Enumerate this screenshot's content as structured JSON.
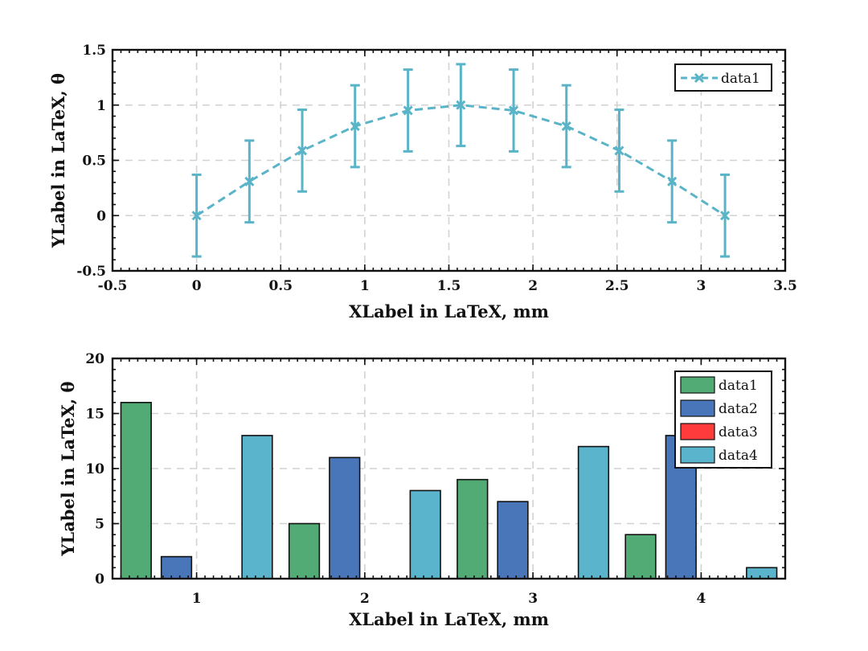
{
  "colors": {
    "line_series": "#5ab4c8",
    "data1": "#52aa74",
    "data2": "#4876b8",
    "data3": "#ff3b3b",
    "data4": "#5ab4cc",
    "axis": "#111111",
    "grid": "#d2d2d2"
  },
  "chart_data": [
    {
      "type": "line",
      "title": "",
      "xlabel": "XLabel in LaTeX, mm",
      "ylabel": "YLabel in LaTeX, θ",
      "xlim": [
        -0.5,
        3.5
      ],
      "ylim": [
        -0.5,
        1.5
      ],
      "xticks": [
        -0.5,
        0,
        0.5,
        1,
        1.5,
        2,
        2.5,
        3,
        3.5
      ],
      "xtick_labels": [
        "-0.5",
        "0",
        "0.5",
        "1",
        "1.5",
        "2",
        "2.5",
        "3",
        "3.5"
      ],
      "yticks": [
        -0.5,
        0,
        0.5,
        1,
        1.5
      ],
      "ytick_labels": [
        "-0.5",
        "0",
        "0.5",
        "1",
        "1.5"
      ],
      "grid": true,
      "legend_position": "top-right",
      "series": [
        {
          "name": "data1",
          "marker": "x",
          "line_style": "dashed",
          "x": [
            0,
            0.314,
            0.628,
            0.942,
            1.257,
            1.571,
            1.885,
            2.199,
            2.513,
            2.827,
            3.142
          ],
          "y": [
            0,
            0.309,
            0.588,
            0.809,
            0.951,
            1.0,
            0.951,
            0.809,
            0.588,
            0.309,
            0
          ],
          "error": [
            0.37,
            0.37,
            0.37,
            0.37,
            0.37,
            0.37,
            0.37,
            0.37,
            0.37,
            0.37,
            0.37
          ]
        }
      ]
    },
    {
      "type": "bar",
      "title": "",
      "xlabel": "XLabel in LaTeX, mm",
      "ylabel": "YLabel in LaTeX, θ",
      "categories": [
        "1",
        "2",
        "3",
        "4"
      ],
      "ylim": [
        0,
        20
      ],
      "yticks": [
        0,
        5,
        10,
        15,
        20
      ],
      "ytick_labels": [
        "0",
        "5",
        "10",
        "15",
        "20"
      ],
      "grid": true,
      "legend_position": "top-right",
      "series": [
        {
          "name": "data1",
          "values": [
            16,
            5,
            9,
            4
          ]
        },
        {
          "name": "data2",
          "values": [
            2,
            11,
            7,
            13
          ]
        },
        {
          "name": "data3",
          "values": [
            0,
            0,
            0,
            0
          ]
        },
        {
          "name": "data4",
          "values": [
            13,
            8,
            12,
            1
          ]
        }
      ]
    }
  ]
}
